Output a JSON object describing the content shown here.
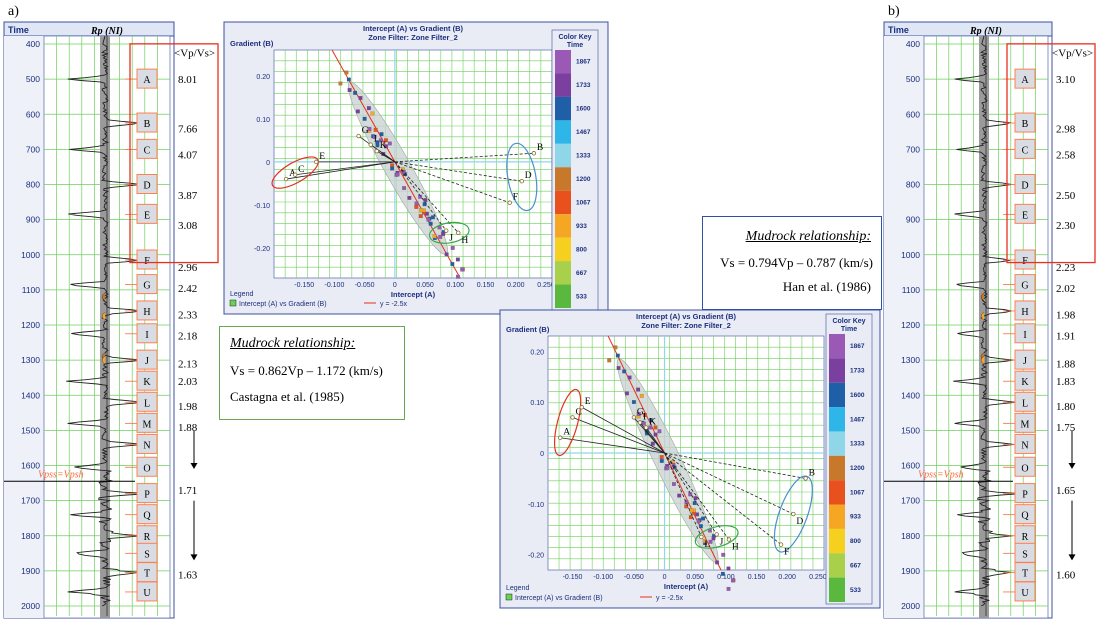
{
  "figure": {
    "label_a": "a)",
    "label_b": "b)"
  },
  "logs": [
    {
      "id": "a",
      "time_header": "Time",
      "curve_title": "Rp (NI)",
      "vpvs_header": "<Vp/Vs>",
      "time_ticks": [
        "400",
        "500",
        "600",
        "700",
        "800",
        "900",
        "1000",
        "1100",
        "1200",
        "1300",
        "1400",
        "1500",
        "1600",
        "1700",
        "1800",
        "1900",
        "2000"
      ],
      "time_range": [
        400,
        2000
      ],
      "zones": [
        {
          "label": "A",
          "time": 500
        },
        {
          "label": "B",
          "time": 625
        },
        {
          "label": "C",
          "time": 700
        },
        {
          "label": "D",
          "time": 800
        },
        {
          "label": "E",
          "time": 885
        },
        {
          "label": "F",
          "time": 1015
        },
        {
          "label": "G",
          "time": 1085
        },
        {
          "label": "H",
          "time": 1160
        },
        {
          "label": "I",
          "time": 1225
        },
        {
          "label": "J",
          "time": 1300
        },
        {
          "label": "K",
          "time": 1360
        },
        {
          "label": "L",
          "time": 1420
        },
        {
          "label": "M",
          "time": 1480
        },
        {
          "label": "N",
          "time": 1540
        },
        {
          "label": "O",
          "time": 1605
        },
        {
          "label": "P",
          "time": 1680
        },
        {
          "label": "Q",
          "time": 1740
        },
        {
          "label": "R",
          "time": 1800
        },
        {
          "label": "S",
          "time": 1850
        },
        {
          "label": "T",
          "time": 1905
        },
        {
          "label": "U",
          "time": 1960
        }
      ],
      "vpvs_values": [
        {
          "value": "8.01",
          "time": 500
        },
        {
          "value": "7.66",
          "time": 640
        },
        {
          "value": "4.07",
          "time": 715
        },
        {
          "value": "3.87",
          "time": 830
        },
        {
          "value": "3.08",
          "time": 915
        },
        {
          "value": "2.96",
          "time": 1035
        },
        {
          "value": "2.42",
          "time": 1095
        },
        {
          "value": "2.33",
          "time": 1170
        },
        {
          "value": "2.18",
          "time": 1230
        },
        {
          "value": "2.13",
          "time": 1310
        },
        {
          "value": "2.03",
          "time": 1360
        },
        {
          "value": "1.98",
          "time": 1430
        },
        {
          "value": "1.88",
          "time": 1490
        },
        {
          "value": "1.71",
          "time": 1670
        },
        {
          "value": "1.63",
          "time": 1910
        }
      ],
      "arrows": [
        {
          "from": 1500,
          "to": 1610
        },
        {
          "from": 1700,
          "to": 1870
        }
      ],
      "annotation": "Vpss=Vpsh",
      "annotation_time": 1605
    },
    {
      "id": "b",
      "time_header": "Time",
      "curve_title": "Rp (NI)",
      "vpvs_header": "<Vp/Vs>",
      "time_ticks": [
        "400",
        "500",
        "600",
        "700",
        "800",
        "900",
        "1000",
        "1100",
        "1200",
        "1300",
        "1400",
        "1500",
        "1600",
        "1700",
        "1800",
        "1900",
        "2000"
      ],
      "time_range": [
        400,
        2000
      ],
      "zones": [
        {
          "label": "A",
          "time": 500
        },
        {
          "label": "B",
          "time": 625
        },
        {
          "label": "C",
          "time": 700
        },
        {
          "label": "D",
          "time": 800
        },
        {
          "label": "E",
          "time": 885
        },
        {
          "label": "F",
          "time": 1015
        },
        {
          "label": "G",
          "time": 1085
        },
        {
          "label": "H",
          "time": 1160
        },
        {
          "label": "I",
          "time": 1225
        },
        {
          "label": "J",
          "time": 1300
        },
        {
          "label": "K",
          "time": 1360
        },
        {
          "label": "L",
          "time": 1420
        },
        {
          "label": "M",
          "time": 1480
        },
        {
          "label": "N",
          "time": 1540
        },
        {
          "label": "O",
          "time": 1605
        },
        {
          "label": "P",
          "time": 1680
        },
        {
          "label": "Q",
          "time": 1740
        },
        {
          "label": "R",
          "time": 1800
        },
        {
          "label": "S",
          "time": 1850
        },
        {
          "label": "T",
          "time": 1905
        },
        {
          "label": "U",
          "time": 1960
        }
      ],
      "vpvs_values": [
        {
          "value": "3.10",
          "time": 500
        },
        {
          "value": "2.98",
          "time": 640
        },
        {
          "value": "2.58",
          "time": 715
        },
        {
          "value": "2.50",
          "time": 830
        },
        {
          "value": "2.30",
          "time": 915
        },
        {
          "value": "2.23",
          "time": 1035
        },
        {
          "value": "2.02",
          "time": 1095
        },
        {
          "value": "1.98",
          "time": 1170
        },
        {
          "value": "1.91",
          "time": 1230
        },
        {
          "value": "1.88",
          "time": 1310
        },
        {
          "value": "1.83",
          "time": 1360
        },
        {
          "value": "1.80",
          "time": 1430
        },
        {
          "value": "1.75",
          "time": 1490
        },
        {
          "value": "1.65",
          "time": 1670
        },
        {
          "value": "1.60",
          "time": 1910
        }
      ],
      "arrows": [
        {
          "from": 1500,
          "to": 1610
        },
        {
          "from": 1700,
          "to": 1870
        }
      ],
      "annotation": "Vpss=Vpsh",
      "annotation_time": 1605
    }
  ],
  "crossplots": [
    {
      "id": "top",
      "title_line1": "Intercept (A) vs Gradient (B)",
      "title_line2": "Zone Filter: Zone Filter_2",
      "ylabel": "Gradient (B)",
      "xlabel": "Intercept (A)",
      "xlim": [
        -0.2,
        0.26
      ],
      "ylim": [
        -0.27,
        0.26
      ],
      "xticks": [
        -0.15,
        -0.1,
        -0.05,
        0,
        0.05,
        0.1,
        0.15,
        0.2,
        0.25
      ],
      "xtick_labels": [
        "-0.150",
        "-0.100",
        "-0.050",
        "0",
        "0.050",
        "0.100",
        "0.150",
        "0.200",
        "0.250"
      ],
      "yticks": [
        0.2,
        0.1,
        0,
        -0.1,
        -0.2
      ],
      "ytick_labels": [
        "0.20",
        "0.10",
        "0",
        "-0.10",
        "-0.20"
      ],
      "trend": {
        "slope": -2.5,
        "label": "y = -2.5x"
      },
      "legend_title": "Legend",
      "legend_entry": "Intercept (A) vs Gradient (B)",
      "color_key_title": "Color Key",
      "color_key_subtitle": "Time",
      "color_key": [
        {
          "label": "1867",
          "color": "#9b59b6"
        },
        {
          "label": "1733",
          "color": "#7b3fa0"
        },
        {
          "label": "1600",
          "color": "#1f5fa8"
        },
        {
          "label": "1467",
          "color": "#2eb6e8"
        },
        {
          "label": "1333",
          "color": "#8fd7e8"
        },
        {
          "label": "1200",
          "color": "#c8782a"
        },
        {
          "label": "1067",
          "color": "#e8501e"
        },
        {
          "label": "933",
          "color": "#f5a623"
        },
        {
          "label": "800",
          "color": "#f5d01e"
        },
        {
          "label": "667",
          "color": "#a8d04a"
        },
        {
          "label": "533",
          "color": "#5bb83e"
        }
      ],
      "points": [
        {
          "label": "A",
          "x": -0.18,
          "y": -0.04
        },
        {
          "label": "C",
          "x": -0.165,
          "y": -0.03
        },
        {
          "label": "E",
          "x": -0.13,
          "y": 0.0
        },
        {
          "label": "B",
          "x": 0.23,
          "y": 0.02
        },
        {
          "label": "D",
          "x": 0.21,
          "y": -0.045
        },
        {
          "label": "F",
          "x": 0.19,
          "y": -0.095
        },
        {
          "label": "G",
          "x": -0.06,
          "y": 0.06
        },
        {
          "label": "I",
          "x": -0.04,
          "y": 0.04
        },
        {
          "label": "K",
          "x": -0.03,
          "y": 0.025
        },
        {
          "label": "J",
          "x": 0.085,
          "y": -0.16
        },
        {
          "label": "H",
          "x": 0.105,
          "y": -0.165
        }
      ]
    },
    {
      "id": "bottom",
      "title_line1": "Intercept (A) vs Gradient (B)",
      "title_line2": "Zone Filter: Zone Filter_2",
      "ylabel": "Gradient (B)",
      "xlabel": "Intercept (A)",
      "xlim": [
        -0.19,
        0.26
      ],
      "ylim": [
        -0.23,
        0.23
      ],
      "xticks": [
        -0.15,
        -0.1,
        -0.05,
        0,
        0.05,
        0.1,
        0.15,
        0.2,
        0.25
      ],
      "xtick_labels": [
        "-0.150",
        "-0.100",
        "-0.050",
        "0",
        "0.050",
        "0.100",
        "0.150",
        "0.200",
        "0.250"
      ],
      "yticks": [
        0.2,
        0.1,
        0,
        -0.1,
        -0.2
      ],
      "ytick_labels": [
        "0.20",
        "0.10",
        "0",
        "-0.10",
        "-0.20"
      ],
      "trend": {
        "slope": -2.5,
        "label": "y = -2.5x"
      },
      "legend_title": "Legend",
      "legend_entry": "Intercept (A) vs Gradient (B)",
      "color_key_title": "Color Key",
      "color_key_subtitle": "Time",
      "color_key": [
        {
          "label": "1867",
          "color": "#9b59b6"
        },
        {
          "label": "1733",
          "color": "#7b3fa0"
        },
        {
          "label": "1600",
          "color": "#1f5fa8"
        },
        {
          "label": "1467",
          "color": "#2eb6e8"
        },
        {
          "label": "1333",
          "color": "#8fd7e8"
        },
        {
          "label": "1200",
          "color": "#c8782a"
        },
        {
          "label": "1067",
          "color": "#e8501e"
        },
        {
          "label": "933",
          "color": "#f5a623"
        },
        {
          "label": "800",
          "color": "#f5d01e"
        },
        {
          "label": "667",
          "color": "#a8d04a"
        },
        {
          "label": "533",
          "color": "#5bb83e"
        }
      ],
      "points": [
        {
          "label": "A",
          "x": -0.17,
          "y": 0.03
        },
        {
          "label": "C",
          "x": -0.15,
          "y": 0.07
        },
        {
          "label": "E",
          "x": -0.135,
          "y": 0.09
        },
        {
          "label": "G",
          "x": -0.05,
          "y": 0.07
        },
        {
          "label": "I",
          "x": -0.04,
          "y": 0.06
        },
        {
          "label": "K",
          "x": -0.03,
          "y": 0.05
        },
        {
          "label": "B",
          "x": 0.23,
          "y": -0.05
        },
        {
          "label": "D",
          "x": 0.21,
          "y": -0.12
        },
        {
          "label": "F",
          "x": 0.19,
          "y": -0.18
        },
        {
          "label": "L",
          "x": 0.06,
          "y": -0.165
        },
        {
          "label": "J",
          "x": 0.085,
          "y": -0.16
        },
        {
          "label": "H",
          "x": 0.105,
          "y": -0.17
        }
      ]
    }
  ],
  "mudrock": [
    {
      "title": "Mudrock relationship:",
      "equation": "Vs = 0.862Vp – 1.172 (km/s)",
      "reference": "Castagna et al. (1985)"
    },
    {
      "title": "Mudrock relationship:",
      "equation": "Vs = 0.794Vp – 0.787 (km/s)",
      "reference": "Han et al. (1986)"
    }
  ],
  "chart_data": [
    {
      "type": "scatter",
      "title": "Intercept (A) vs Gradient (B)",
      "xlabel": "Intercept (A)",
      "ylabel": "Gradient (B)",
      "xlim": [
        -0.2,
        0.26
      ],
      "ylim": [
        -0.27,
        0.26
      ],
      "trend": "y = -2.5x"
    },
    {
      "type": "scatter",
      "title": "Intercept (A) vs Gradient (B)",
      "xlabel": "Intercept (A)",
      "ylabel": "Gradient (B)",
      "xlim": [
        -0.19,
        0.26
      ],
      "ylim": [
        -0.23,
        0.23
      ],
      "trend": "y = -2.5x"
    }
  ]
}
